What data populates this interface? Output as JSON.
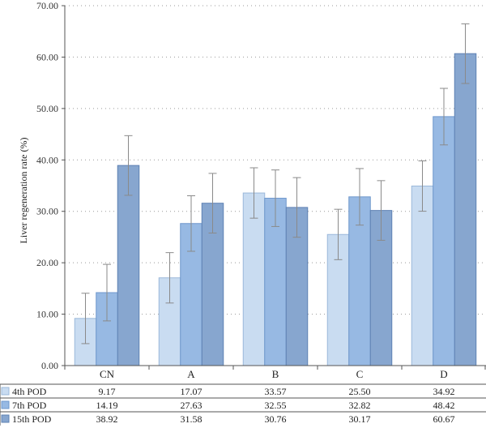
{
  "chart_data": {
    "type": "bar",
    "categories": [
      "CN",
      "A",
      "B",
      "C",
      "D"
    ],
    "ylabel": "Liver regeneration rate (%)",
    "ylim": [
      0,
      70
    ],
    "yticks": [
      "0.00",
      "10.00",
      "20.00",
      "30.00",
      "40.00",
      "50.00",
      "60.00",
      "70.00"
    ],
    "grid": true,
    "legend_placement": "table-below",
    "series": [
      {
        "name": "4th POD",
        "color": "#c9dcf1",
        "stroke": "#9bb8da",
        "values": [
          9.17,
          17.07,
          33.57,
          25.5,
          34.92
        ],
        "labels": [
          "9.17",
          "17.07",
          "33.57",
          "25.50",
          "34.92"
        ],
        "errors": [
          4.9,
          4.9,
          4.9,
          4.9,
          4.9
        ]
      },
      {
        "name": "7th POD",
        "color": "#97b9e3",
        "stroke": "#6e97cc",
        "values": [
          14.19,
          27.63,
          32.55,
          32.82,
          48.42
        ],
        "labels": [
          "14.19",
          "27.63",
          "32.55",
          "32.82",
          "48.42"
        ],
        "errors": [
          5.5,
          5.4,
          5.5,
          5.5,
          5.5
        ]
      },
      {
        "name": "15th POD",
        "color": "#87a6cf",
        "stroke": "#5e81b3",
        "values": [
          38.92,
          31.58,
          30.76,
          30.17,
          60.67
        ],
        "labels": [
          "38.92",
          "31.58",
          "30.76",
          "30.17",
          "60.67"
        ],
        "errors": [
          5.8,
          5.8,
          5.8,
          5.8,
          5.8
        ]
      }
    ]
  }
}
